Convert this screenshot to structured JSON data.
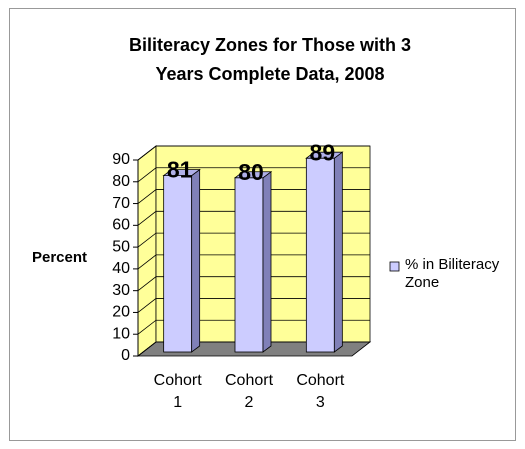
{
  "chart_data": {
    "type": "bar3d",
    "title": [
      "Biliteracy Zones for Those with 3",
      "Years Complete Data, 2008"
    ],
    "y_label": "Percent",
    "categories": [
      "Cohort 1",
      "Cohort 2",
      "Cohort 3"
    ],
    "series": [
      {
        "name": "% in Biliteracy Zone",
        "color": "#ccccff",
        "values": [
          81,
          80,
          89
        ]
      }
    ],
    "ylim": [
      0,
      90
    ],
    "yticks": [
      0,
      10,
      20,
      30,
      40,
      50,
      60,
      70,
      80,
      90
    ],
    "grid": true,
    "legend": "right"
  }
}
